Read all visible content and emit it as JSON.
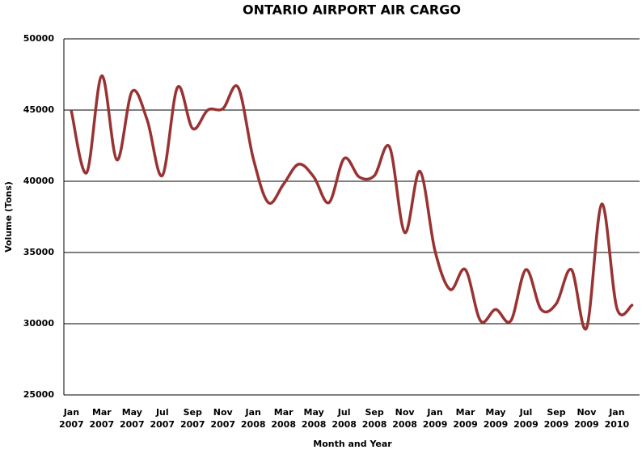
{
  "chart_data": {
    "type": "line",
    "title": "ONTARIO AIRPORT AIR CARGO",
    "x_label": "Month and Year",
    "y_label": "Volume (Tons)",
    "categories": [
      "Jan 2007",
      null,
      "Mar 2007",
      null,
      "May 2007",
      null,
      "Jul 2007",
      null,
      "Sep 2007",
      null,
      "Nov 2007",
      null,
      "Jan 2008",
      null,
      "Mar 2008",
      null,
      "May 2008",
      null,
      "Jul 2008",
      null,
      "Sep 2008",
      null,
      "Nov 2008",
      null,
      "Jan 2009",
      null,
      "Mar 2009",
      null,
      "May 2009",
      null,
      "Jul 2009",
      null,
      "Sep 2009",
      null,
      "Nov 2009",
      null,
      "Jan 2010",
      null
    ],
    "series": [
      {
        "name": "Volume",
        "color": "#993333",
        "values": [
          44900,
          40600,
          47400,
          41500,
          46300,
          44300,
          40400,
          46600,
          43700,
          45000,
          45100,
          46600,
          41600,
          38500,
          39800,
          41200,
          40300,
          38500,
          41600,
          40300,
          40400,
          42400,
          36400,
          40700,
          35100,
          32400,
          33800,
          30200,
          31000,
          30200,
          33800,
          31000,
          31400,
          33800,
          29700,
          38400,
          31100,
          31300
        ]
      }
    ],
    "ylim": [
      25000,
      50000
    ],
    "yticks": [
      25000,
      30000,
      35000,
      40000,
      45000,
      50000
    ],
    "grid": true
  }
}
